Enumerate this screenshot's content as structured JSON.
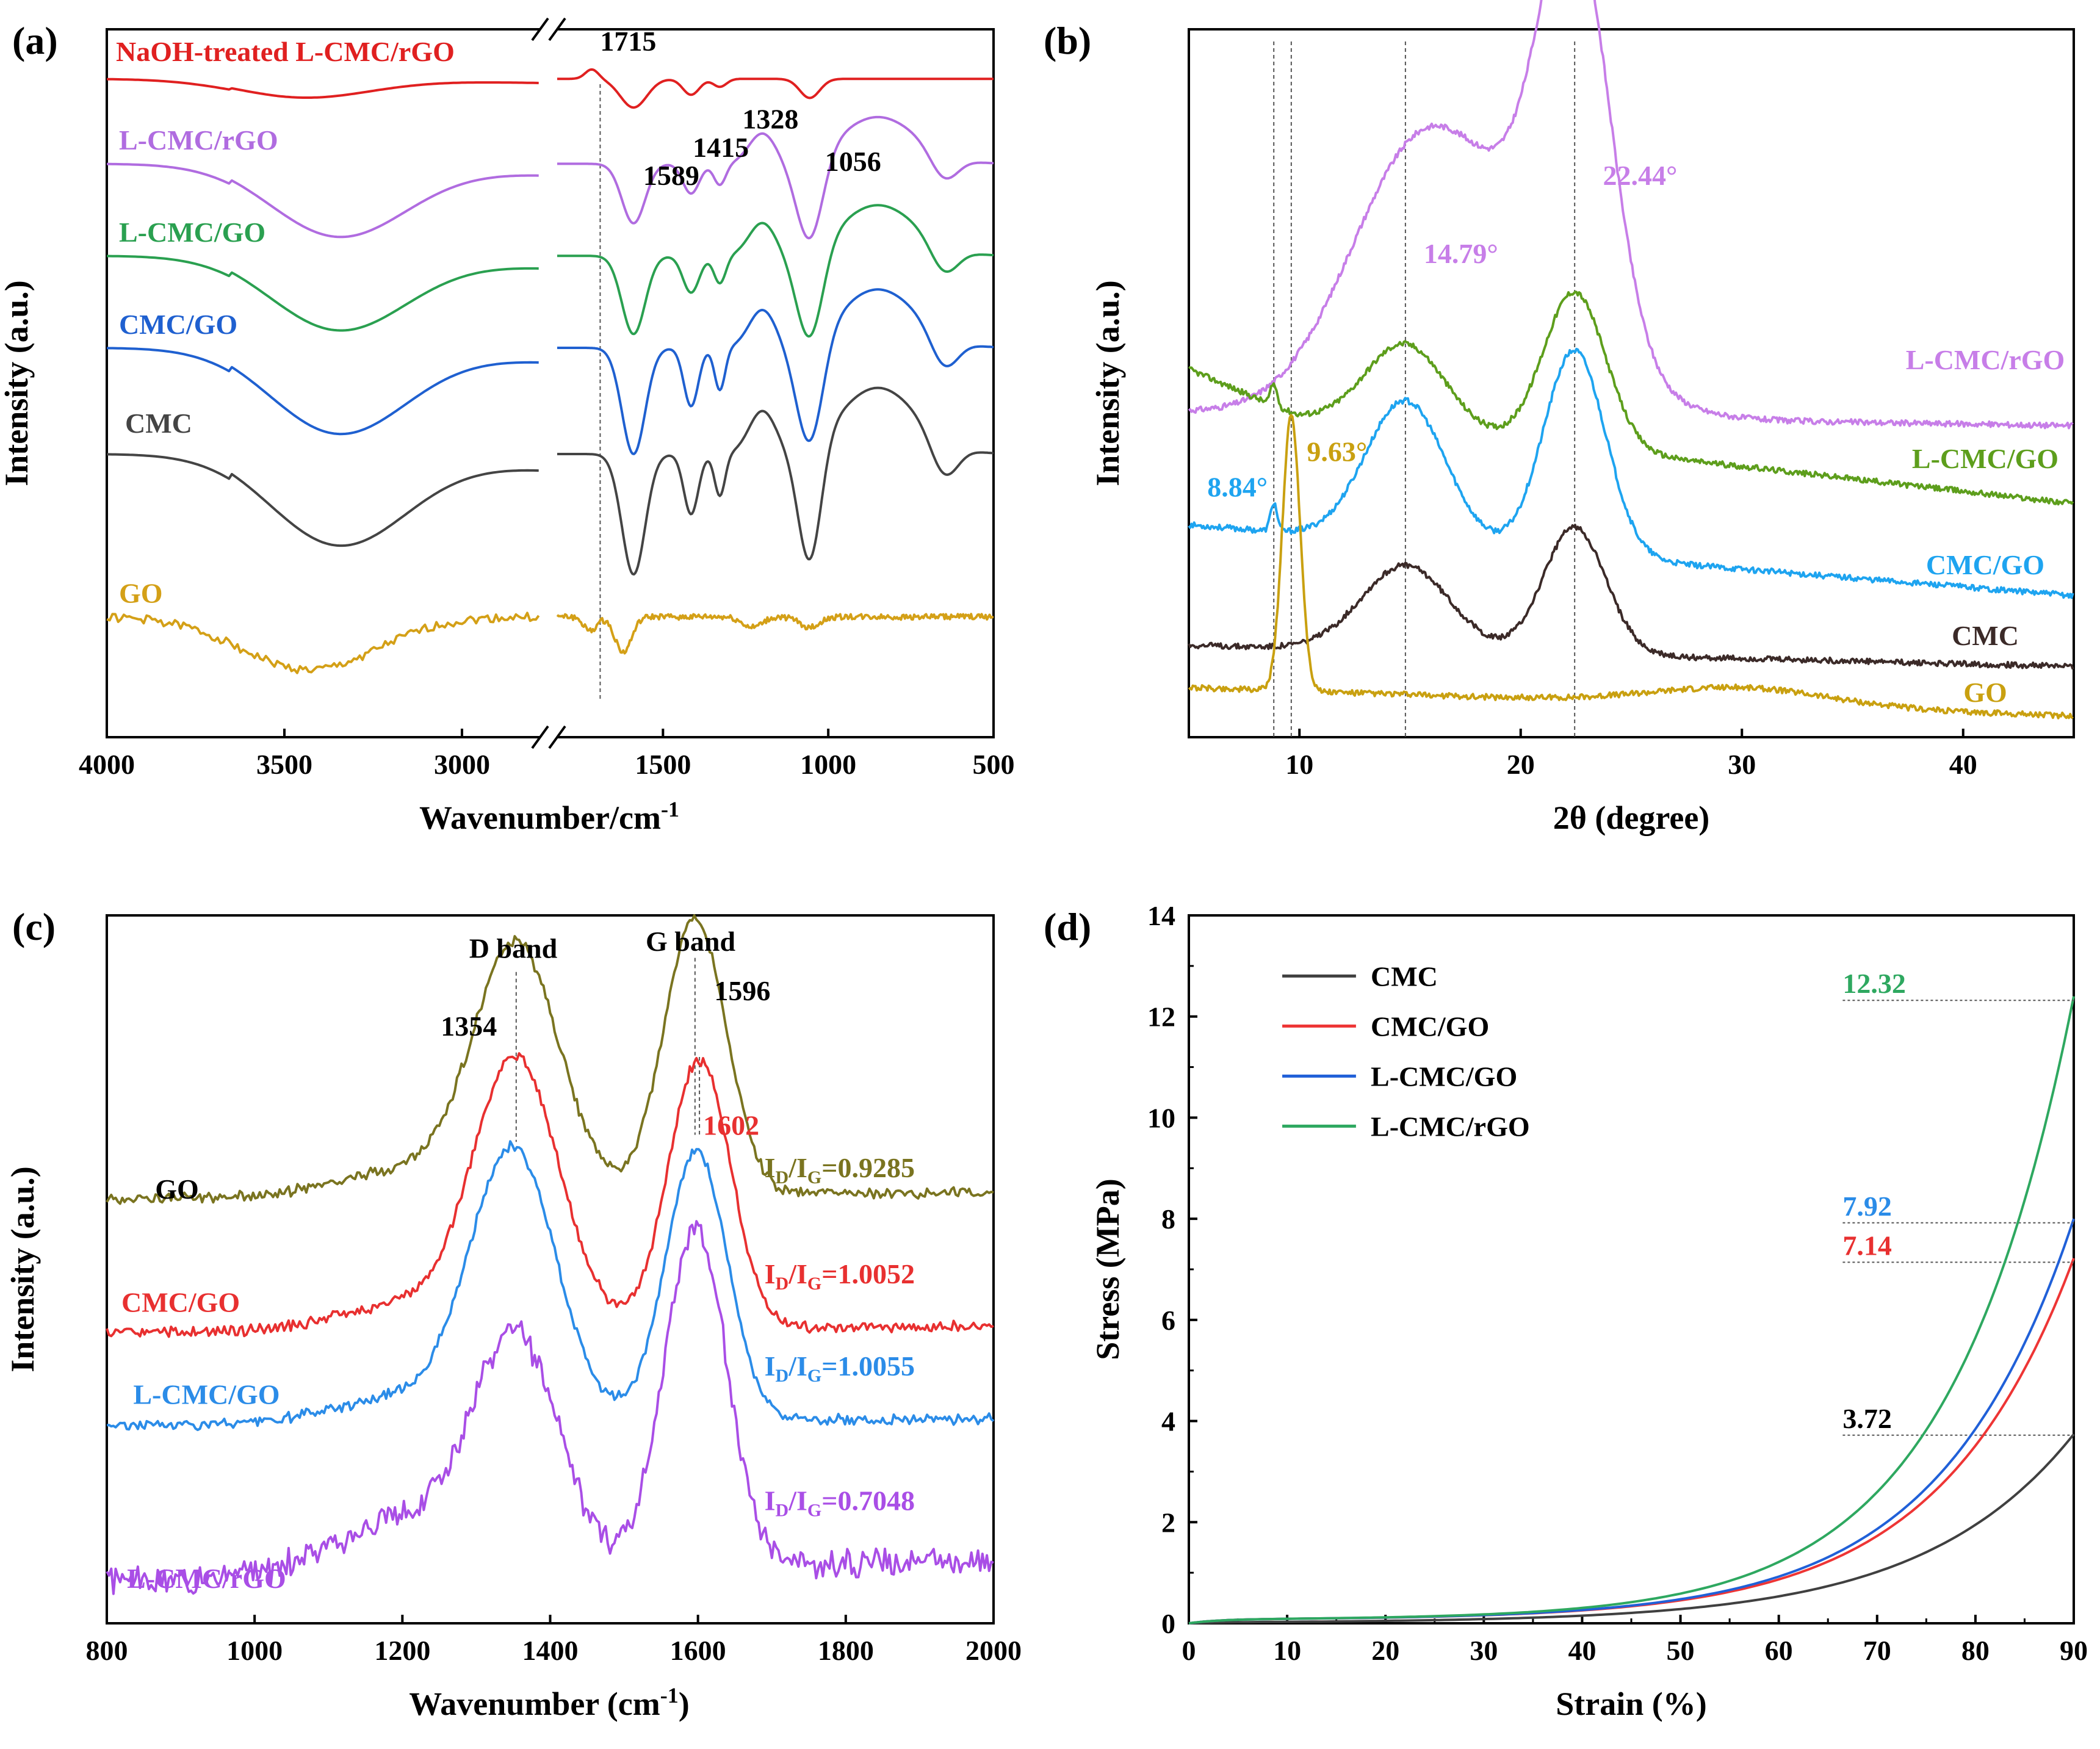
{
  "chart_data": [
    {
      "panel": "(a)",
      "type": "line",
      "title": "",
      "xlabel": "Wavenumber/cm",
      "xlabel_sup": "-1",
      "ylabel": "Intensity (a.u.)",
      "xlim": [
        4000,
        500
      ],
      "axis_break": [
        2780,
        1820
      ],
      "x_ticks": [
        4000,
        3500,
        3000,
        1500,
        1000,
        500
      ],
      "x_tick_labels": [
        "4000",
        "3500",
        "3000",
        "1500",
        "1000",
        "500"
      ],
      "reference_lines": [
        1690
      ],
      "series": [
        {
          "name": "NaOH-treated L-CMC/rGO",
          "color": "#e02020",
          "offset": 0.93,
          "amp": 0.045,
          "broad": [
            3450,
            0.6
          ],
          "peaks": [
            [
              1589,
              0.9,
              40
            ],
            [
              1415,
              0.5,
              25
            ],
            [
              1328,
              0.25,
              20
            ],
            [
              1056,
              0.6,
              30
            ],
            [
              1715,
              -0.3,
              20
            ]
          ]
        },
        {
          "name": "L-CMC/rGO",
          "color": "#b06ce0",
          "offset": 0.81,
          "amp": 0.12,
          "broad": [
            3350,
            0.85
          ],
          "peaks": [
            [
              1589,
              0.7,
              35
            ],
            [
              1415,
              0.35,
              25
            ],
            [
              1328,
              0.25,
              18
            ],
            [
              1056,
              1.0,
              40
            ],
            [
              650,
              0.3,
              40
            ]
          ]
        },
        {
          "name": "L-CMC/GO",
          "color": "#2aa050",
          "offset": 0.68,
          "amp": 0.13,
          "broad": [
            3350,
            0.8
          ],
          "peaks": [
            [
              1589,
              0.85,
              35
            ],
            [
              1415,
              0.4,
              25
            ],
            [
              1328,
              0.3,
              18
            ],
            [
              1056,
              1.0,
              40
            ],
            [
              650,
              0.3,
              40
            ]
          ]
        },
        {
          "name": "CMC/GO",
          "color": "#1f60d0",
          "offset": 0.55,
          "amp": 0.15,
          "broad": [
            3350,
            0.8
          ],
          "peaks": [
            [
              1589,
              1.0,
              35
            ],
            [
              1415,
              0.55,
              22
            ],
            [
              1328,
              0.4,
              16
            ],
            [
              1056,
              1.0,
              40
            ],
            [
              650,
              0.3,
              40
            ]
          ]
        },
        {
          "name": "CMC",
          "color": "#444444",
          "offset": 0.4,
          "amp": 0.17,
          "broad": [
            3350,
            0.75
          ],
          "peaks": [
            [
              1589,
              1.0,
              35
            ],
            [
              1415,
              0.5,
              22
            ],
            [
              1328,
              0.35,
              16
            ],
            [
              1056,
              1.0,
              35
            ],
            [
              650,
              0.3,
              40
            ]
          ]
        },
        {
          "name": "GO",
          "color": "#d4a017",
          "offset": 0.17,
          "amp": 0.1,
          "broad": [
            3430,
            0.75
          ],
          "peaks": [
            [
              1720,
              0.2,
              20
            ],
            [
              1620,
              0.5,
              25
            ],
            [
              1230,
              0.15,
              30
            ],
            [
              1056,
              0.15,
              30
            ]
          ]
        }
      ],
      "annotations": [
        {
          "text": "1715",
          "color": "#000000",
          "x": 1690,
          "y": 0.97
        },
        {
          "text": "1589",
          "color": "#000000",
          "x": 1560,
          "y": 0.78
        },
        {
          "text": "1415",
          "color": "#000000",
          "x": 1410,
          "y": 0.82
        },
        {
          "text": "1328",
          "color": "#000000",
          "x": 1260,
          "y": 0.86
        },
        {
          "text": "1056",
          "color": "#000000",
          "x": 1010,
          "y": 0.8
        }
      ]
    },
    {
      "panel": "(b)",
      "type": "line",
      "title": "",
      "xlabel": "2θ (degree)",
      "ylabel": "Intensity (a.u.)",
      "xlim": [
        5,
        45
      ],
      "x_ticks": [
        10,
        20,
        30,
        40
      ],
      "x_tick_labels": [
        "10",
        "20",
        "30",
        "40"
      ],
      "reference_lines": [
        8.84,
        9.63,
        14.79,
        22.44
      ],
      "series": [
        {
          "name": "L-CMC/rGO",
          "color": "#c77ee8",
          "base": [
            0.46,
            0.44
          ],
          "peaks": [
            [
              14.79,
              0.22,
              3.0
            ],
            [
              22.44,
              0.55,
              1.6
            ],
            [
              18.5,
              0.25,
              4.0
            ]
          ]
        },
        {
          "name": "L-CMC/GO",
          "color": "#5d9e1c",
          "base": [
            0.47,
            0.33
          ],
          "peaks": [
            [
              14.79,
              0.12,
              1.8
            ],
            [
              22.44,
              0.22,
              1.4
            ],
            [
              8.84,
              0.03,
              0.15
            ]
          ]
        },
        {
          "name": "CMC/GO",
          "color": "#1ea4f0",
          "base": [
            0.3,
            0.2
          ],
          "peaks": [
            [
              14.79,
              0.2,
              1.8
            ],
            [
              22.44,
              0.29,
              1.4
            ],
            [
              8.84,
              0.04,
              0.15
            ]
          ]
        },
        {
          "name": "CMC",
          "color": "#3b2a28",
          "base": [
            0.13,
            0.1
          ],
          "peaks": [
            [
              14.79,
              0.12,
              2.0
            ],
            [
              22.44,
              0.18,
              1.4
            ]
          ]
        },
        {
          "name": "GO",
          "color": "#c9a010",
          "base": [
            0.07,
            0.03
          ],
          "peaks": [
            [
              9.63,
              0.39,
              0.4
            ],
            [
              30,
              0.025,
              4.0
            ]
          ]
        }
      ],
      "annotations": [
        {
          "text": "8.84°",
          "color": "#1ea4f0",
          "x": 7.2,
          "y": 0.34
        },
        {
          "text": "9.63°",
          "color": "#c9a010",
          "x": 11.7,
          "y": 0.39
        },
        {
          "text": "14.79°",
          "color": "#c77ee8",
          "x": 17.3,
          "y": 0.67
        },
        {
          "text": "22.44°",
          "color": "#c77ee8",
          "x": 25.4,
          "y": 0.78
        },
        {
          "text": "L-CMC/rGO",
          "color": "#c77ee8",
          "x": 41,
          "y": 0.52
        },
        {
          "text": "L-CMC/GO",
          "color": "#5d9e1c",
          "x": 41,
          "y": 0.38
        },
        {
          "text": "CMC/GO",
          "color": "#1ea4f0",
          "x": 41,
          "y": 0.23
        },
        {
          "text": "CMC",
          "color": "#3b2a28",
          "x": 41,
          "y": 0.13
        },
        {
          "text": "GO",
          "color": "#c9a010",
          "x": 41,
          "y": 0.05
        }
      ]
    },
    {
      "panel": "(c)",
      "type": "line",
      "title": "",
      "xlabel": "Wavenumber (cm",
      "xlabel_sup": "-1",
      "xlabel_tail": ")",
      "ylabel": "Intensity (a.u.)",
      "xlim": [
        800,
        2000
      ],
      "x_ticks": [
        800,
        1000,
        1200,
        1400,
        1600,
        1800,
        2000
      ],
      "x_tick_labels": [
        "800",
        "1000",
        "1200",
        "1400",
        "1600",
        "1800",
        "2000"
      ],
      "reference_lines": [
        1354,
        1596,
        1602
      ],
      "series": [
        {
          "name": "GO",
          "color": "#7a7420",
          "offset": 0.6,
          "d": [
            1354,
            0.35
          ],
          "g": [
            1596,
            0.39
          ],
          "ratio": "0.9285"
        },
        {
          "name": "CMC/GO",
          "color": "#e83030",
          "offset": 0.41,
          "d": [
            1354,
            0.38
          ],
          "g": [
            1602,
            0.38
          ],
          "ratio": "1.0052"
        },
        {
          "name": "L-CMC/GO",
          "color": "#2b8ce8",
          "offset": 0.28,
          "d": [
            1350,
            0.38
          ],
          "g": [
            1598,
            0.38
          ],
          "ratio": "1.0055"
        },
        {
          "name": "L-CMC/rGO",
          "color": "#a94ee6",
          "offset": 0.06,
          "d": [
            1354,
            0.32
          ],
          "g": [
            1596,
            0.48
          ],
          "ratio": "0.7048"
        }
      ],
      "annotations": [
        {
          "text": "D band",
          "color": "#000000",
          "x": 1350,
          "y": 0.94
        },
        {
          "text": "G band",
          "color": "#000000",
          "x": 1590,
          "y": 0.95
        },
        {
          "text": "1354",
          "color": "#000000",
          "x": 1290,
          "y": 0.83
        },
        {
          "text": "1596",
          "color": "#000000",
          "x": 1660,
          "y": 0.88
        },
        {
          "text": "1602",
          "color": "#e83030",
          "x": 1645,
          "y": 0.69
        },
        {
          "text": "GO",
          "color": "#000000",
          "x": 895,
          "y": 0.6
        },
        {
          "text": "CMC/GO",
          "color": "#e83030",
          "x": 900,
          "y": 0.44
        },
        {
          "text": "L-CMC/GO",
          "color": "#2b8ce8",
          "x": 935,
          "y": 0.31
        },
        {
          "text": "L-CMC/rGO",
          "color": "#a94ee6",
          "x": 935,
          "y": 0.05
        }
      ],
      "ratio_labels": {
        "prefix_main": "I",
        "sub_d": "D",
        "slash": "/I",
        "sub_g": "G",
        "eq": "="
      }
    },
    {
      "panel": "(d)",
      "type": "line",
      "title": "",
      "xlabel": "Strain (%)",
      "ylabel": "Stress (MPa)",
      "xlim": [
        0,
        90
      ],
      "ylim": [
        0,
        14
      ],
      "x_ticks": [
        0,
        10,
        20,
        30,
        40,
        50,
        60,
        70,
        80,
        90
      ],
      "x_tick_labels": [
        "0",
        "10",
        "20",
        "30",
        "40",
        "50",
        "60",
        "70",
        "80",
        "90"
      ],
      "y_ticks": [
        0,
        2,
        4,
        6,
        8,
        10,
        12,
        14
      ],
      "y_tick_labels": [
        "0",
        "2",
        "4",
        "6",
        "8",
        "10",
        "12",
        "14"
      ],
      "legend_position": "top-left",
      "series": [
        {
          "name": "CMC",
          "color": "#404040",
          "max_stress": 3.72,
          "label": "3.72",
          "k": 0.0655
        },
        {
          "name": "CMC/GO",
          "color": "#ee3535",
          "max_stress": 7.14,
          "label": "7.14",
          "k": 0.0731
        },
        {
          "name": "L-CMC/GO",
          "color": "#2060d8",
          "max_stress": 7.92,
          "label": "7.92",
          "k": 0.0743
        },
        {
          "name": "L-CMC/rGO",
          "color": "#2ea860",
          "max_stress": 12.32,
          "label": "12.32",
          "k": 0.0793
        }
      ],
      "label_colors": [
        "#000000",
        "#e83030",
        "#2b8ce8",
        "#2ea860"
      ]
    }
  ],
  "panel_labels": [
    "(a)",
    "(b)",
    "(c)",
    "(d)"
  ]
}
